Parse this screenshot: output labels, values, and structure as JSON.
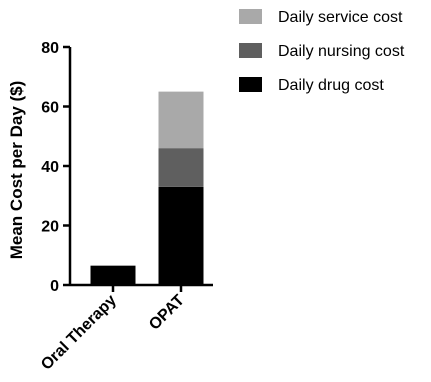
{
  "chart_data": {
    "type": "bar",
    "stacked": true,
    "categories": [
      "Oral Therapy",
      "OPAT"
    ],
    "series": [
      {
        "name": "Daily drug cost",
        "values": [
          6.5,
          33
        ],
        "color": "#000000"
      },
      {
        "name": "Daily nursing cost",
        "values": [
          0,
          13
        ],
        "color": "#5f5f5f"
      },
      {
        "name": "Daily service cost",
        "values": [
          0,
          19
        ],
        "color": "#a9a9a9"
      }
    ],
    "legend_order": [
      "Daily service cost",
      "Daily nursing cost",
      "Daily drug cost"
    ],
    "title": "",
    "xlabel": "",
    "ylabel": "Mean Cost per Day ($)",
    "ylim": [
      0,
      80
    ],
    "yticks": [
      0,
      20,
      40,
      60,
      80
    ],
    "grid": false,
    "legend_position": "top-right"
  }
}
